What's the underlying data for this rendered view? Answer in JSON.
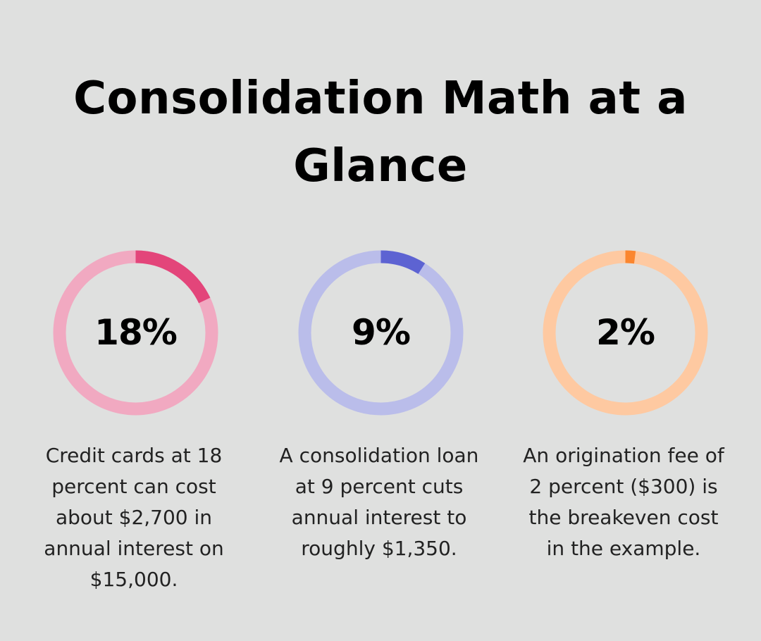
{
  "header": {
    "title": "Consolidation Math at a Glance"
  },
  "chart_data": [
    {
      "type": "pie",
      "value_label": "18%",
      "values": [
        18,
        82
      ],
      "description": "Credit cards at 18 percent can cost about $2,700 in annual interest on $15,000.",
      "colors": {
        "fill": "#e3457a",
        "track": "#f1a9c1"
      }
    },
    {
      "type": "pie",
      "value_label": "9%",
      "values": [
        9,
        91
      ],
      "description": "A consolidation loan at 9 percent cuts annual interest to roughly $1,350.",
      "colors": {
        "fill": "#5d63d2",
        "track": "#babdea"
      }
    },
    {
      "type": "pie",
      "value_label": "2%",
      "values": [
        2,
        98
      ],
      "description": "An origination fee of 2 percent ($300) is the breakeven cost in the example.",
      "colors": {
        "fill": "#fb862f",
        "track": "#fec9a1"
      }
    }
  ]
}
